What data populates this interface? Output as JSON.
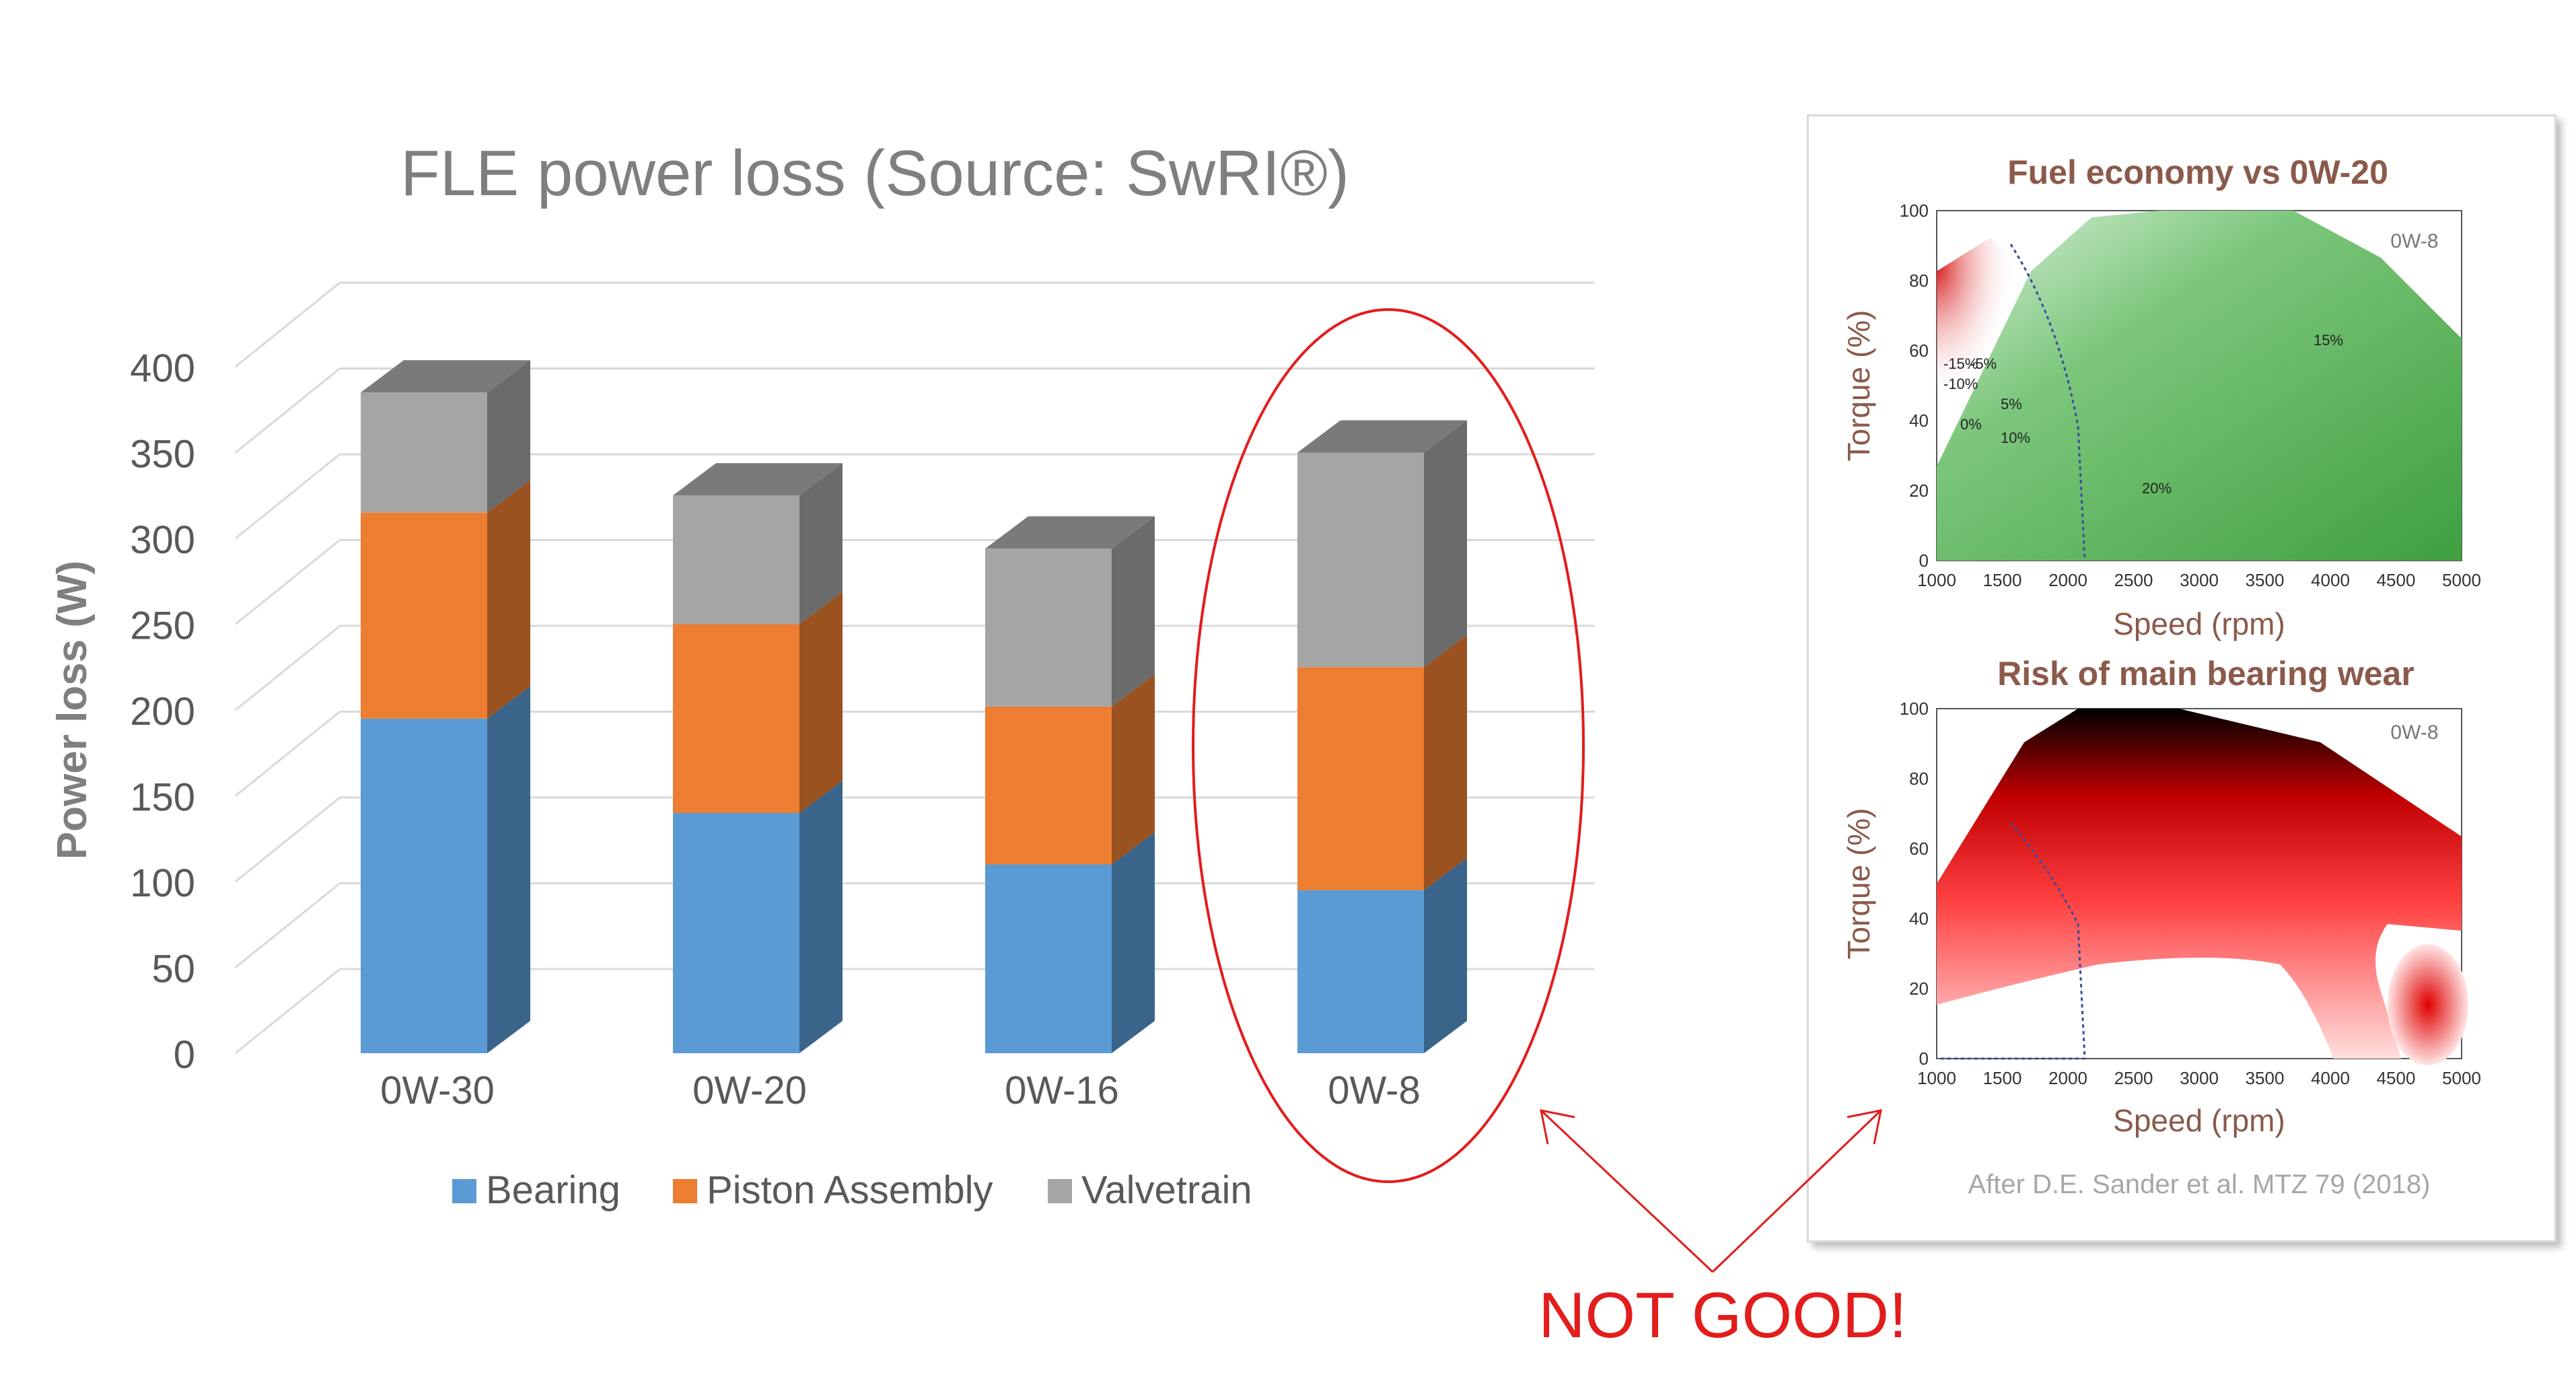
{
  "chart_data": [
    {
      "type": "bar",
      "stacked": true,
      "three_d": true,
      "title": "FLE power loss (Source: SwRI®)",
      "xlabel": "",
      "ylabel": "Power loss (W)",
      "ylim": [
        0,
        400
      ],
      "yticks": [
        0,
        50,
        100,
        150,
        200,
        250,
        300,
        350,
        400
      ],
      "categories": [
        "0W-30",
        "0W-20",
        "0W-16",
        "0W-8"
      ],
      "series": [
        {
          "name": "Bearing",
          "color": "#5b9bd5",
          "side_color": "#3a6489",
          "values": [
            195,
            140,
            110,
            95
          ]
        },
        {
          "name": "Piston Assembly",
          "color": "#ed7d31",
          "side_color": "#9a5220",
          "values": [
            120,
            110,
            92,
            130
          ]
        },
        {
          "name": "Valvetrain",
          "color": "#a5a5a5",
          "side_color": "#6b6b6b",
          "values": [
            70,
            75,
            92,
            125
          ]
        }
      ],
      "legend_position": "bottom",
      "highlight_category": "0W-8",
      "grid": true
    },
    {
      "type": "heatmap",
      "title": "Fuel economy vs 0W-20",
      "variant_label": "0W-8",
      "xlabel": "Speed (rpm)",
      "ylabel": "Torque (%)",
      "xticks": [
        1000,
        1500,
        2000,
        2500,
        3000,
        3500,
        4000,
        4500,
        5000
      ],
      "yticks": [
        0,
        20,
        40,
        60,
        80,
        100
      ],
      "contour_labels": [
        "-15%",
        "-5%",
        "-10%",
        "0%",
        "5%",
        "10%",
        "15%",
        "20%"
      ]
    },
    {
      "type": "heatmap",
      "title": "Risk of main bearing wear",
      "variant_label": "0W-8",
      "xlabel": "Speed (rpm)",
      "ylabel": "Torque (%)",
      "xticks": [
        1000,
        1500,
        2000,
        2500,
        3000,
        3500,
        4000,
        4500,
        5000
      ],
      "yticks": [
        0,
        20,
        40,
        60,
        80,
        100
      ]
    }
  ],
  "citation": "After D.E. Sander et al. MTZ 79 (2018)",
  "callout": "NOT GOOD!",
  "colors": {
    "callout": "#e31c1c",
    "grid": "#d9d9d9",
    "axis_text": "#595959",
    "panel_title": "#8b5a4a",
    "fuel_green": "#4aaa4a",
    "wear_red": "#e00000"
  }
}
